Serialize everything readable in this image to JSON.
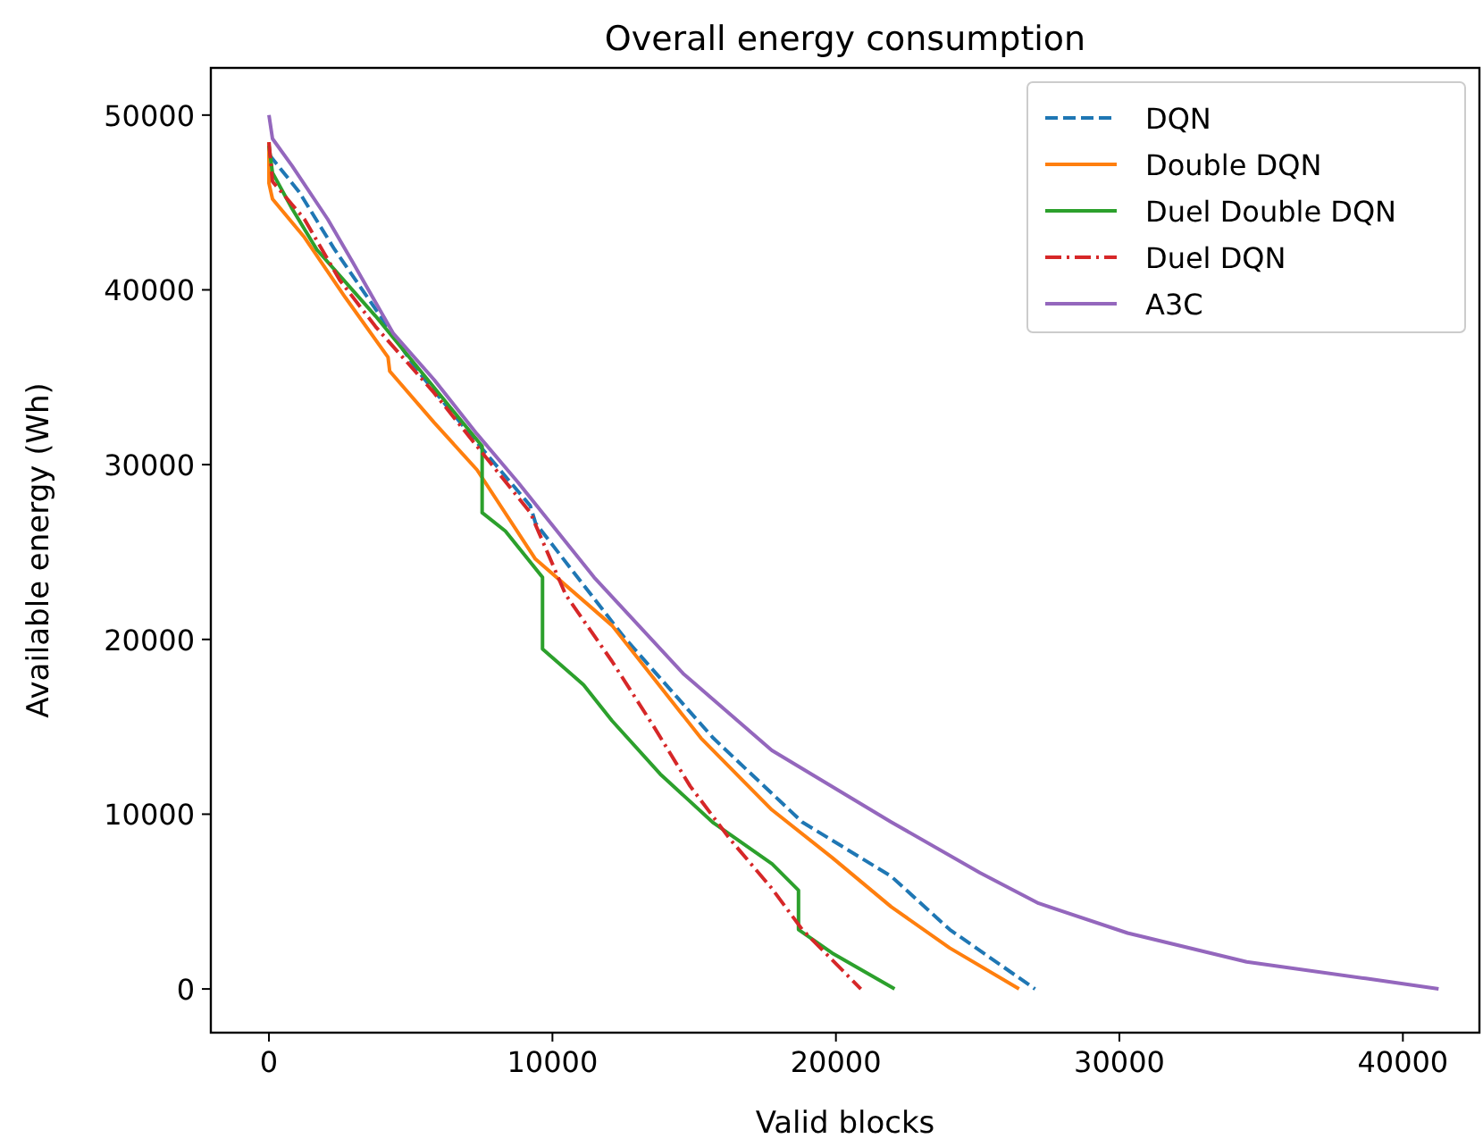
{
  "chart_data": {
    "type": "line",
    "title": "Overall energy consumption",
    "xlabel": "Valid blocks",
    "ylabel": "Available energy (Wh)",
    "xlim": [
      -2050,
      42700
    ],
    "ylim": [
      -2500,
      52700
    ],
    "xticks": [
      0,
      10000,
      20000,
      30000,
      40000
    ],
    "yticks": [
      0,
      10000,
      20000,
      30000,
      40000,
      50000
    ],
    "grid": false,
    "legend": "top right",
    "marker": "none",
    "series": [
      {
        "name": "DQN",
        "color": "#1f77b4",
        "line_style": "dashed",
        "x": [
          0,
          1066,
          2320,
          3762,
          5204,
          7085,
          9217,
          9405,
          12540,
          15675,
          18810,
          21945,
          24014,
          27024
        ],
        "values": [
          47750,
          45600,
          42300,
          38900,
          35450,
          31750,
          27650,
          26650,
          20100,
          14350,
          9550,
          6450,
          3400,
          0
        ]
      },
      {
        "name": "Double DQN",
        "color": "#ff7f0e",
        "line_style": "solid",
        "x": [
          0,
          0,
          125,
          1254,
          2700,
          4200,
          4260,
          5830,
          7340,
          9400,
          12100,
          15240,
          17740,
          19880,
          21950,
          24010,
          26460
        ],
        "values": [
          48450,
          46100,
          45200,
          43000,
          39550,
          36150,
          35350,
          32400,
          29700,
          24600,
          20800,
          14350,
          10250,
          7500,
          4700,
          2350,
          0
        ]
      },
      {
        "name": "Duel Double DQN",
        "color": "#2ca02c",
        "line_style": "solid",
        "x": [
          0,
          125,
          815,
          1690,
          3760,
          5830,
          7520,
          7520,
          8340,
          9650,
          9650,
          11100,
          12100,
          13800,
          15680,
          17750,
          18680,
          18680,
          19870,
          22070
        ],
        "values": [
          48250,
          46700,
          44650,
          42300,
          38500,
          34400,
          31050,
          27250,
          26200,
          23550,
          19450,
          17400,
          15350,
          12300,
          9500,
          7150,
          5650,
          3400,
          2050,
          0
        ]
      },
      {
        "name": "Duel DQN",
        "color": "#d62728",
        "line_style": "dashdot",
        "x": [
          0,
          125,
          1250,
          2500,
          3760,
          5830,
          7340,
          9220,
          10470,
          12100,
          13600,
          14860,
          16300,
          17740,
          18810,
          20880
        ],
        "values": [
          48450,
          46200,
          44050,
          40550,
          37900,
          34100,
          31050,
          27250,
          22550,
          18750,
          14950,
          11600,
          8500,
          5750,
          3400,
          0
        ]
      },
      {
        "name": "A3C",
        "color": "#9467bd",
        "line_style": "solid",
        "x": [
          0,
          125,
          815,
          2070,
          2950,
          4390,
          5830,
          7340,
          8780,
          11470,
          14610,
          17740,
          21950,
          25080,
          27150,
          30290,
          34490,
          38690,
          41260
        ],
        "values": [
          50000,
          48650,
          47100,
          44050,
          41600,
          37500,
          34850,
          31750,
          29000,
          23550,
          18050,
          13650,
          9550,
          6650,
          4900,
          3200,
          1550,
          600,
          0
        ]
      }
    ]
  }
}
